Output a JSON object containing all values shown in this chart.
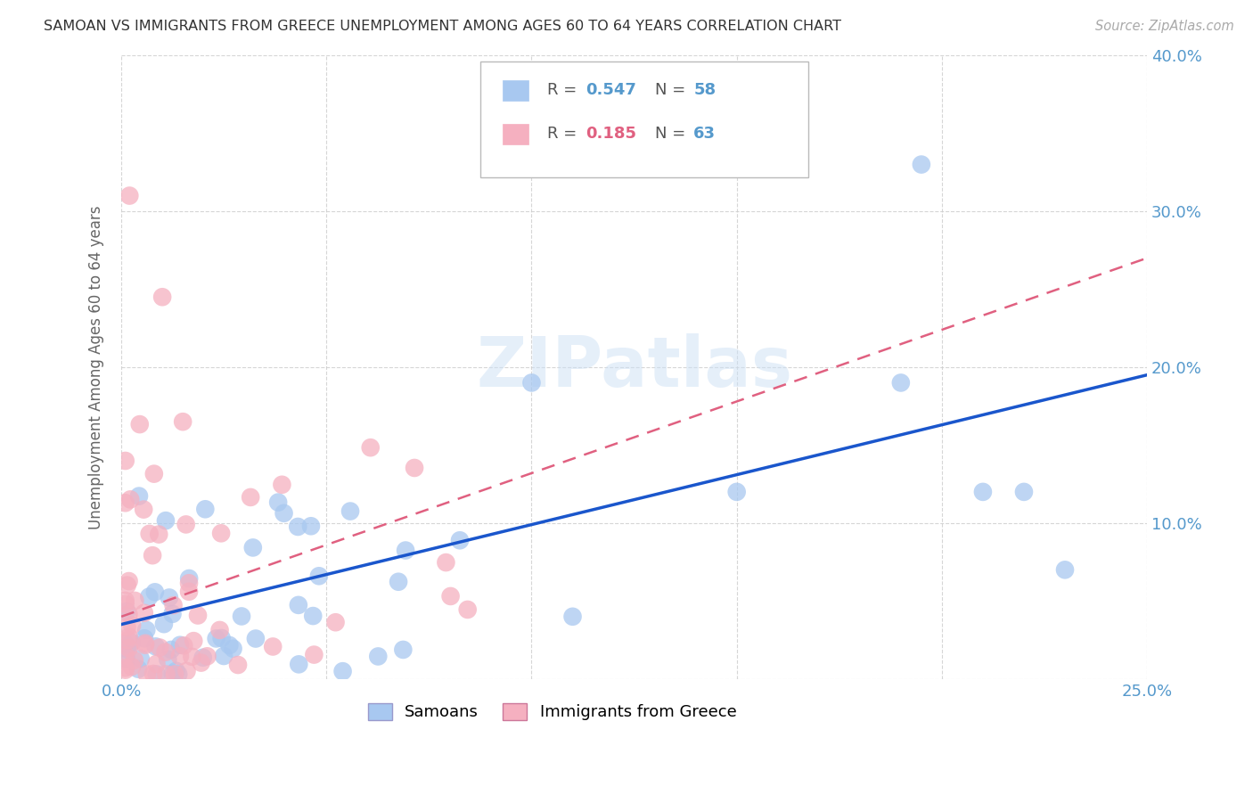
{
  "title": "SAMOAN VS IMMIGRANTS FROM GREECE UNEMPLOYMENT AMONG AGES 60 TO 64 YEARS CORRELATION CHART",
  "source": "Source: ZipAtlas.com",
  "ylabel": "Unemployment Among Ages 60 to 64 years",
  "xlim": [
    0.0,
    0.25
  ],
  "ylim": [
    0.0,
    0.4
  ],
  "xticks": [
    0.0,
    0.05,
    0.1,
    0.15,
    0.2,
    0.25
  ],
  "yticks": [
    0.0,
    0.1,
    0.2,
    0.3,
    0.4
  ],
  "samoan_R": 0.547,
  "samoan_N": 58,
  "greece_R": 0.185,
  "greece_N": 63,
  "samoan_color": "#a8c8f0",
  "greece_color": "#f5b0c0",
  "samoan_line_color": "#1a56cc",
  "greece_line_color": "#e06080",
  "watermark": "ZIPatlas",
  "background_color": "#ffffff",
  "tick_color": "#5599cc",
  "grid_color": "#cccccc",
  "samoan_line_y0": 0.035,
  "samoan_line_y1": 0.195,
  "greece_line_y0": 0.04,
  "greece_line_y1": 0.27
}
